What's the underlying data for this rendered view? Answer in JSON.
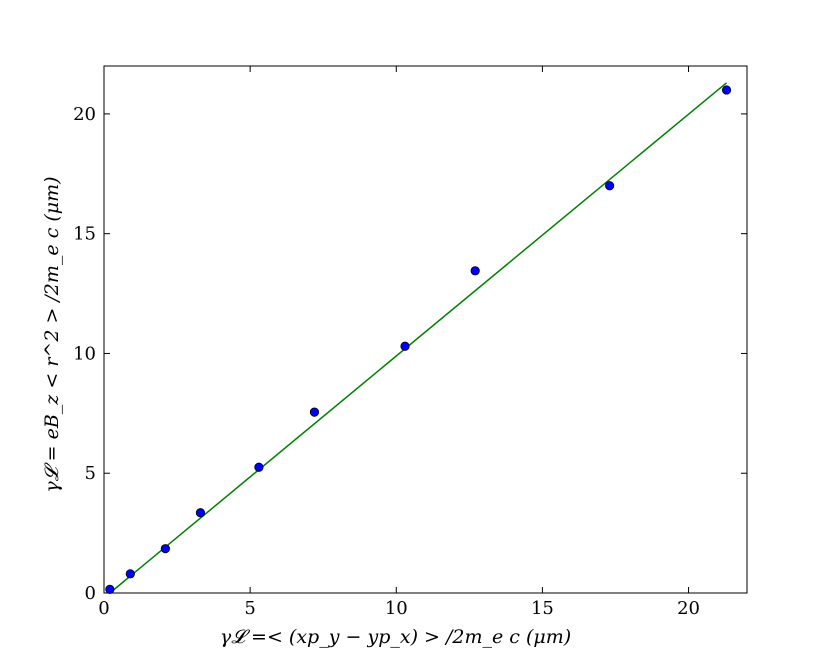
{
  "chart_data": {
    "type": "scatter",
    "xlabel": "γ𝓛 =< (xp_y − yp_x) > /2m_e c (μm)",
    "ylabel": "γ𝓛 = eB_z < r^2 > /2m_e c (μm)",
    "xlim": [
      0,
      22
    ],
    "ylim": [
      0,
      22
    ],
    "xticks": [
      "0",
      "5",
      "10",
      "15",
      "20"
    ],
    "yticks": [
      "0",
      "5",
      "10",
      "15",
      "20"
    ],
    "grid": false,
    "series": [
      {
        "kind": "points",
        "color": "#0000ff",
        "points": [
          {
            "x": 0.2,
            "y": 0.15
          },
          {
            "x": 0.9,
            "y": 0.8
          },
          {
            "x": 2.1,
            "y": 1.85
          },
          {
            "x": 3.3,
            "y": 3.35
          },
          {
            "x": 5.3,
            "y": 5.25
          },
          {
            "x": 7.2,
            "y": 7.55
          },
          {
            "x": 10.3,
            "y": 10.3
          },
          {
            "x": 12.7,
            "y": 13.45
          },
          {
            "x": 17.3,
            "y": 17.0
          },
          {
            "x": 21.3,
            "y": 21.0
          }
        ]
      },
      {
        "kind": "line",
        "color": "#008000",
        "points": [
          {
            "x": 0.2,
            "y": 0.0
          },
          {
            "x": 21.3,
            "y": 21.3
          }
        ]
      }
    ]
  }
}
